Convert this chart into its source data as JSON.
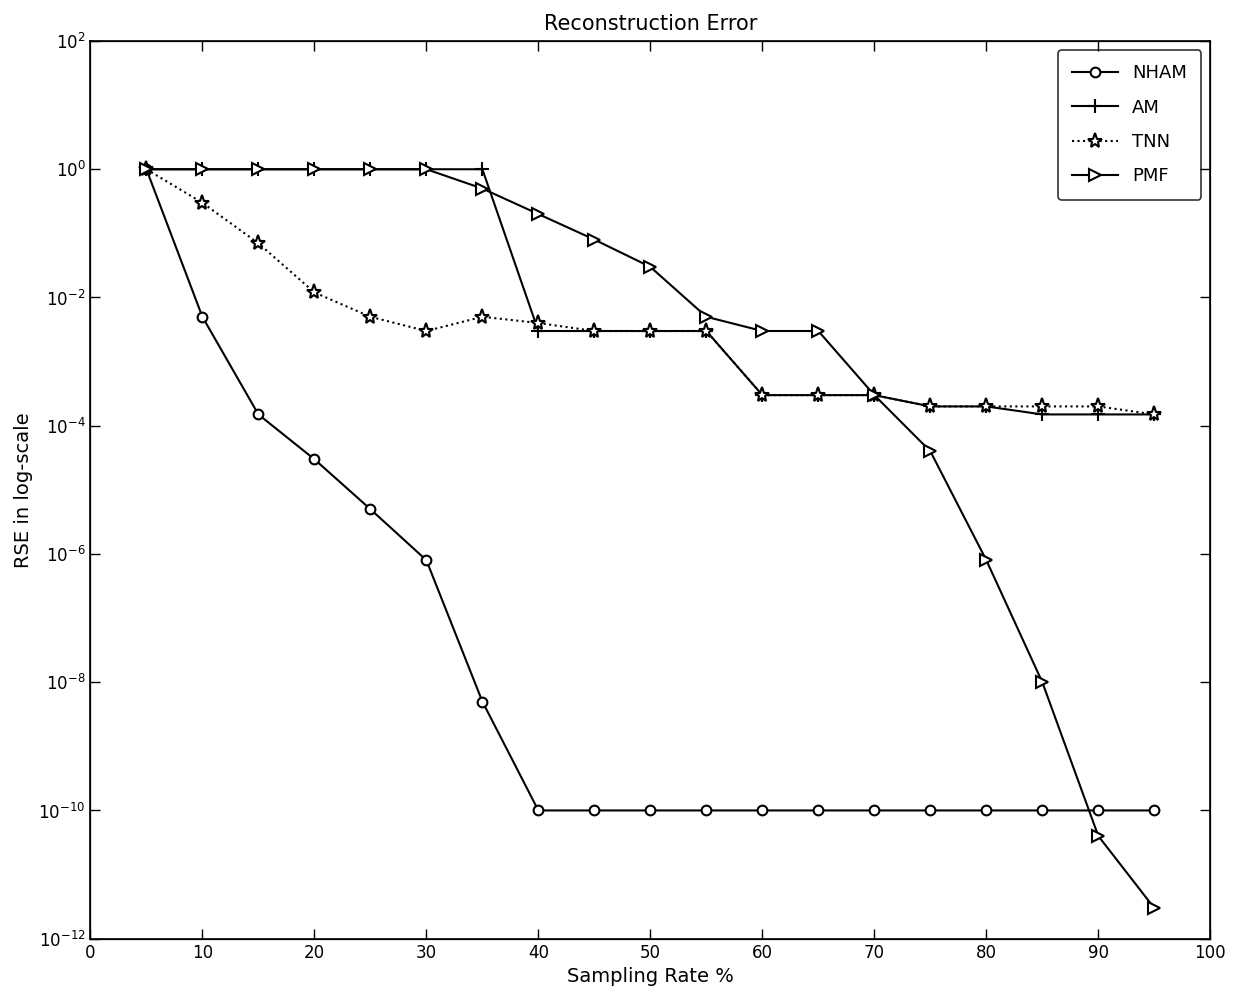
{
  "title": "Reconstruction Error",
  "xlabel": "Sampling Rate %",
  "ylabel": "RSE in log-scale",
  "xlim": [
    0,
    100
  ],
  "x_ticks": [
    0,
    10,
    20,
    30,
    40,
    50,
    60,
    70,
    80,
    90,
    100
  ],
  "top_ticks": [
    10,
    20,
    30,
    40,
    50,
    60,
    70,
    80,
    90
  ],
  "NHAM": {
    "x": [
      5,
      10,
      15,
      20,
      25,
      30,
      35,
      40,
      45,
      50,
      55,
      60,
      65,
      70,
      75,
      80,
      85,
      90,
      95
    ],
    "y": [
      1.0,
      0.005,
      0.00015,
      3e-05,
      5e-06,
      8e-07,
      5e-09,
      1e-10,
      1e-10,
      1e-10,
      1e-10,
      1e-10,
      1e-10,
      1e-10,
      1e-10,
      1e-10,
      1e-10,
      1e-10,
      1e-10
    ],
    "marker": "o",
    "linestyle": "-",
    "label": "NHAM"
  },
  "AM": {
    "x": [
      5,
      10,
      15,
      20,
      25,
      30,
      35,
      40,
      45,
      50,
      55,
      60,
      65,
      70,
      75,
      80,
      85,
      90,
      95
    ],
    "y": [
      1.0,
      1.0,
      1.0,
      1.0,
      1.0,
      1.0,
      1.0,
      0.003,
      0.003,
      0.003,
      0.003,
      0.0003,
      0.0003,
      0.0003,
      0.0002,
      0.0002,
      0.00015,
      0.00015,
      0.00015
    ],
    "marker": "+",
    "linestyle": "-",
    "label": "AM"
  },
  "TNN": {
    "x": [
      5,
      10,
      15,
      20,
      25,
      30,
      35,
      40,
      45,
      50,
      55,
      60,
      65,
      70,
      75,
      80,
      85,
      90,
      95
    ],
    "y": [
      1.0,
      0.3,
      0.07,
      0.012,
      0.005,
      0.003,
      0.005,
      0.004,
      0.003,
      0.003,
      0.003,
      0.0003,
      0.0003,
      0.0003,
      0.0002,
      0.0002,
      0.0002,
      0.0002,
      0.00015
    ],
    "marker": "*",
    "linestyle": ":",
    "label": "TNN"
  },
  "PMF": {
    "x": [
      5,
      10,
      15,
      20,
      25,
      30,
      35,
      40,
      45,
      50,
      55,
      60,
      65,
      70,
      75,
      80,
      85,
      90,
      95
    ],
    "y": [
      1.0,
      1.0,
      1.0,
      1.0,
      1.0,
      1.0,
      0.5,
      0.2,
      0.08,
      0.03,
      0.005,
      0.003,
      0.003,
      0.0003,
      4e-05,
      8e-07,
      1e-08,
      4e-11,
      3e-12
    ],
    "marker": ">",
    "linestyle": "-",
    "label": "PMF"
  }
}
